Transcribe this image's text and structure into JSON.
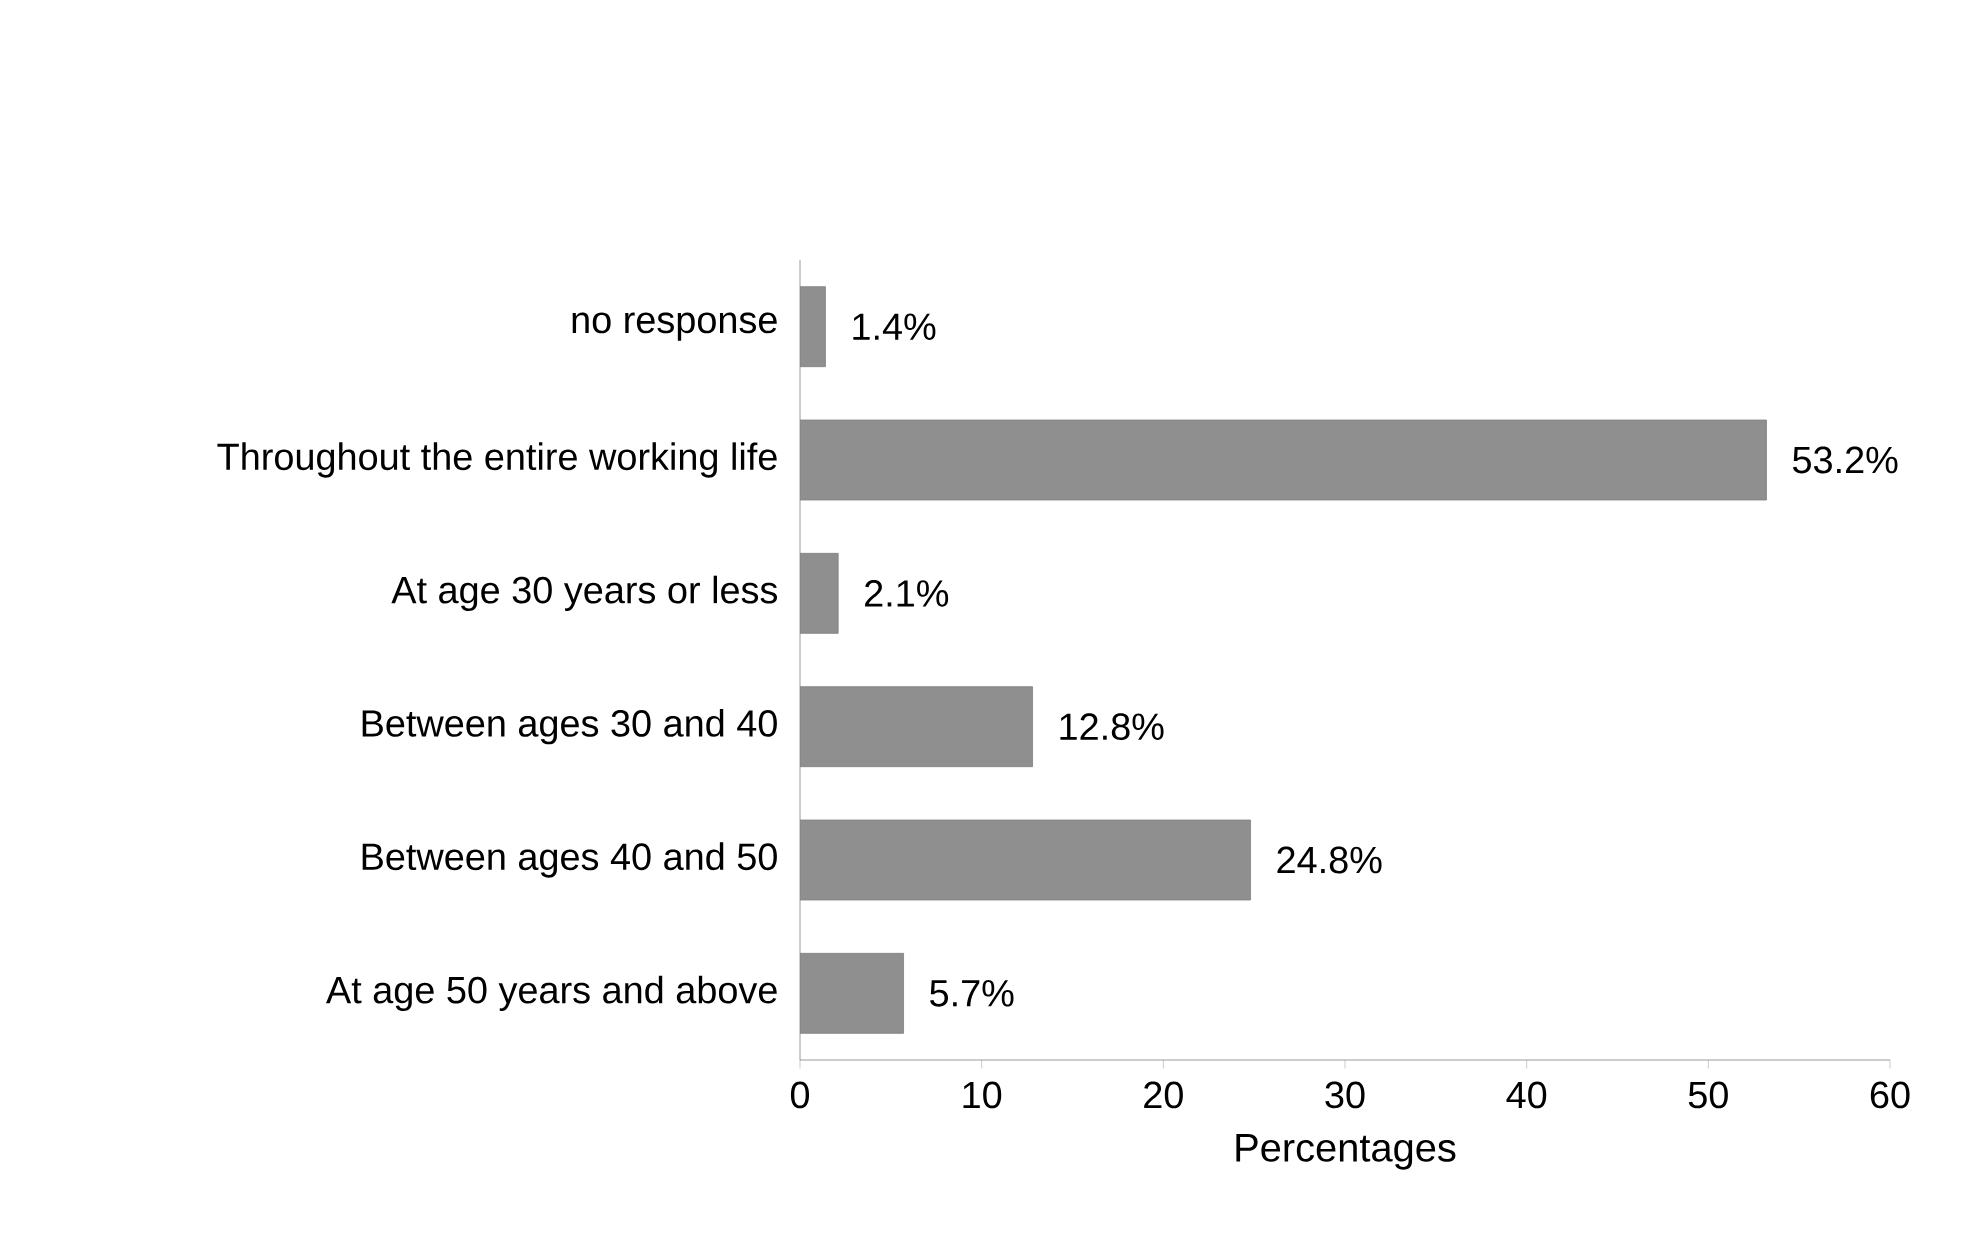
{
  "chart_data": {
    "type": "bar",
    "orientation": "horizontal",
    "xlabel": "Percentages",
    "categories": [
      "no response",
      "Throughout the entire working life",
      "At age 30 years or less",
      "Between ages 30 and 40",
      "Between ages 40 and 50",
      "At age 50 years and above"
    ],
    "values": [
      1.4,
      53.2,
      2.1,
      12.8,
      24.8,
      5.7
    ],
    "value_labels": [
      "1.4%",
      "53.2%",
      "2.1%",
      "12.8%",
      "24.8%",
      "5.7%"
    ],
    "color": "#8f8f8f",
    "xlim": [
      0,
      60
    ],
    "xticks": [
      0,
      10,
      20,
      30,
      40,
      50,
      60
    ],
    "grid": false
  }
}
